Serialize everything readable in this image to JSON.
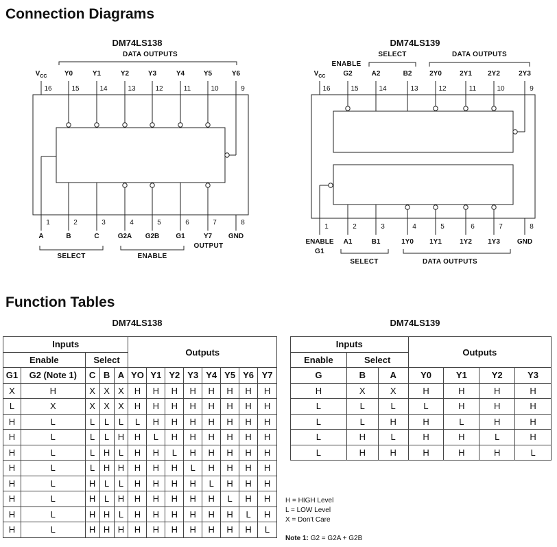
{
  "headings": {
    "connection": "Connection Diagrams",
    "function": "Function Tables"
  },
  "chips": {
    "ls138": {
      "title": "DM74LS138",
      "top_group": "DATA OUTPUTS",
      "bottom_groups": [
        "SELECT",
        "ENABLE"
      ],
      "top_pins": [
        {
          "num": "16",
          "label": "VCC"
        },
        {
          "num": "15",
          "label": "Y0"
        },
        {
          "num": "14",
          "label": "Y1"
        },
        {
          "num": "13",
          "label": "Y2"
        },
        {
          "num": "12",
          "label": "Y3"
        },
        {
          "num": "11",
          "label": "Y4"
        },
        {
          "num": "10",
          "label": "Y5"
        },
        {
          "num": "9",
          "label": "Y6"
        }
      ],
      "bottom_pins": [
        {
          "num": "1",
          "label": "A"
        },
        {
          "num": "2",
          "label": "B"
        },
        {
          "num": "3",
          "label": "C"
        },
        {
          "num": "4",
          "label": "G2A"
        },
        {
          "num": "5",
          "label": "G2B"
        },
        {
          "num": "6",
          "label": "G1"
        },
        {
          "num": "7",
          "label": "Y7"
        },
        {
          "num": "8",
          "label": "GND"
        }
      ],
      "y7_sub": "OUTPUT"
    },
    "ls139": {
      "title": "DM74LS139",
      "top_groups": [
        "ENABLE",
        "SELECT",
        "DATA OUTPUTS"
      ],
      "bottom_groups": [
        "SELECT",
        "DATA OUTPUTS"
      ],
      "top_pins": [
        {
          "num": "16",
          "label": "VCC"
        },
        {
          "num": "15",
          "label": "G2"
        },
        {
          "num": "14",
          "label": "A2"
        },
        {
          "num": "13",
          "label": "B2"
        },
        {
          "num": "12",
          "label": "2Y0"
        },
        {
          "num": "11",
          "label": "2Y1"
        },
        {
          "num": "10",
          "label": "2Y2"
        },
        {
          "num": "9",
          "label": "2Y3"
        }
      ],
      "bottom_pins": [
        {
          "num": "1",
          "label": "ENABLE"
        },
        {
          "num": "2",
          "label": "A1"
        },
        {
          "num": "3",
          "label": "B1"
        },
        {
          "num": "4",
          "label": "1Y0"
        },
        {
          "num": "5",
          "label": "1Y1"
        },
        {
          "num": "6",
          "label": "1Y2"
        },
        {
          "num": "7",
          "label": "1Y3"
        },
        {
          "num": "8",
          "label": "GND"
        }
      ],
      "g1_sub": "G1"
    }
  },
  "tables": {
    "ls138": {
      "title": "DM74LS138",
      "group_inputs": "Inputs",
      "group_enable": "Enable",
      "group_select": "Select",
      "group_outputs": "Outputs",
      "columns": [
        "G1",
        "G2 (Note 1)",
        "C",
        "B",
        "A",
        "YO",
        "Y1",
        "Y2",
        "Y3",
        "Y4",
        "Y5",
        "Y6",
        "Y7"
      ],
      "rows": [
        [
          "X",
          "H",
          "X",
          "X",
          "X",
          "H",
          "H",
          "H",
          "H",
          "H",
          "H",
          "H",
          "H"
        ],
        [
          "L",
          "X",
          "X",
          "X",
          "X",
          "H",
          "H",
          "H",
          "H",
          "H",
          "H",
          "H",
          "H"
        ],
        [
          "H",
          "L",
          "L",
          "L",
          "L",
          "L",
          "H",
          "H",
          "H",
          "H",
          "H",
          "H",
          "H"
        ],
        [
          "H",
          "L",
          "L",
          "L",
          "H",
          "H",
          "L",
          "H",
          "H",
          "H",
          "H",
          "H",
          "H"
        ],
        [
          "H",
          "L",
          "L",
          "H",
          "L",
          "H",
          "H",
          "L",
          "H",
          "H",
          "H",
          "H",
          "H"
        ],
        [
          "H",
          "L",
          "L",
          "H",
          "H",
          "H",
          "H",
          "H",
          "L",
          "H",
          "H",
          "H",
          "H"
        ],
        [
          "H",
          "L",
          "H",
          "L",
          "L",
          "H",
          "H",
          "H",
          "H",
          "L",
          "H",
          "H",
          "H"
        ],
        [
          "H",
          "L",
          "H",
          "L",
          "H",
          "H",
          "H",
          "H",
          "H",
          "H",
          "L",
          "H",
          "H"
        ],
        [
          "H",
          "L",
          "H",
          "H",
          "L",
          "H",
          "H",
          "H",
          "H",
          "H",
          "H",
          "L",
          "H"
        ],
        [
          "H",
          "L",
          "H",
          "H",
          "H",
          "H",
          "H",
          "H",
          "H",
          "H",
          "H",
          "H",
          "L"
        ]
      ]
    },
    "ls139": {
      "title": "DM74LS139",
      "group_inputs": "Inputs",
      "group_enable": "Enable",
      "group_select": "Select",
      "group_outputs": "Outputs",
      "columns": [
        "G",
        "B",
        "A",
        "Y0",
        "Y1",
        "Y2",
        "Y3"
      ],
      "rows": [
        [
          "H",
          "X",
          "X",
          "H",
          "H",
          "H",
          "H"
        ],
        [
          "L",
          "L",
          "L",
          "L",
          "H",
          "H",
          "H"
        ],
        [
          "L",
          "L",
          "H",
          "H",
          "L",
          "H",
          "H"
        ],
        [
          "L",
          "H",
          "L",
          "H",
          "H",
          "L",
          "H"
        ],
        [
          "L",
          "H",
          "H",
          "H",
          "H",
          "H",
          "L"
        ]
      ]
    }
  },
  "legend": [
    "H = HIGH Level",
    "L = LOW Level",
    "X = Don't Care"
  ],
  "note": {
    "label": "Note 1:",
    "text": "G2 = G2A + G2B"
  }
}
